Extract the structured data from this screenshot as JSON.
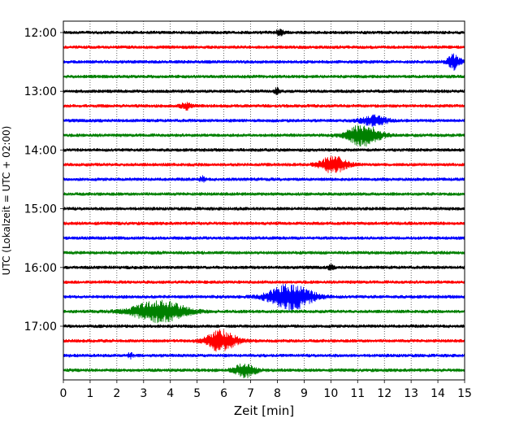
{
  "chart_data": {
    "type": "line",
    "title": "",
    "xlabel": "Zeit  [min]",
    "ylabel": "UTC (Lokalzeit = UTC + 02:00)",
    "xlim": [
      0,
      15
    ],
    "x_ticks": [
      "0",
      "1",
      "2",
      "3",
      "4",
      "5",
      "6",
      "7",
      "8",
      "9",
      "10",
      "11",
      "12",
      "13",
      "14",
      "15"
    ],
    "y_ticks": [
      "12:00",
      "13:00",
      "14:00",
      "15:00",
      "16:00",
      "17:00"
    ],
    "y_tick_traces": [
      0,
      4,
      8,
      12,
      16,
      20
    ],
    "grid": "vertical dotted at each minute",
    "trace_interval_min": 15,
    "color_cycle": [
      "#000000",
      "#ff0000",
      "#0000ff",
      "#008000"
    ],
    "series": [
      {
        "start": "12:00",
        "color": "#000000",
        "events": [
          {
            "t": 8.1,
            "amp": 0.5,
            "dur": 0.3
          }
        ]
      },
      {
        "start": "12:15",
        "color": "#ff0000",
        "events": []
      },
      {
        "start": "12:30",
        "color": "#0000ff",
        "events": [
          {
            "t": 14.6,
            "amp": 1.3,
            "dur": 0.5
          }
        ]
      },
      {
        "start": "12:45",
        "color": "#008000",
        "events": []
      },
      {
        "start": "13:00",
        "color": "#000000",
        "events": [
          {
            "t": 8.0,
            "amp": 0.6,
            "dur": 0.2
          }
        ]
      },
      {
        "start": "13:15",
        "color": "#ff0000",
        "events": [
          {
            "t": 4.6,
            "amp": 0.6,
            "dur": 0.4
          }
        ]
      },
      {
        "start": "13:30",
        "color": "#0000ff",
        "events": [
          {
            "t": 11.6,
            "amp": 0.8,
            "dur": 1.0
          }
        ]
      },
      {
        "start": "13:45",
        "color": "#008000",
        "events": [
          {
            "t": 11.2,
            "amp": 1.8,
            "dur": 1.2
          }
        ]
      },
      {
        "start": "14:00",
        "color": "#000000",
        "events": []
      },
      {
        "start": "14:15",
        "color": "#ff0000",
        "events": [
          {
            "t": 10.1,
            "amp": 1.4,
            "dur": 1.0
          }
        ]
      },
      {
        "start": "14:30",
        "color": "#0000ff",
        "events": [
          {
            "t": 5.2,
            "amp": 0.5,
            "dur": 0.2
          }
        ]
      },
      {
        "start": "14:45",
        "color": "#008000",
        "events": []
      },
      {
        "start": "15:00",
        "color": "#000000",
        "events": []
      },
      {
        "start": "15:15",
        "color": "#ff0000",
        "events": []
      },
      {
        "start": "15:30",
        "color": "#0000ff",
        "events": []
      },
      {
        "start": "15:45",
        "color": "#008000",
        "events": []
      },
      {
        "start": "16:00",
        "color": "#000000",
        "events": [
          {
            "t": 10.0,
            "amp": 0.4,
            "dur": 0.2
          }
        ]
      },
      {
        "start": "16:15",
        "color": "#ff0000",
        "events": []
      },
      {
        "start": "16:30",
        "color": "#0000ff",
        "events": [
          {
            "t": 8.5,
            "amp": 2.2,
            "dur": 1.6
          }
        ]
      },
      {
        "start": "16:45",
        "color": "#008000",
        "events": [
          {
            "t": 3.6,
            "amp": 1.8,
            "dur": 2.0
          }
        ]
      },
      {
        "start": "17:00",
        "color": "#000000",
        "events": []
      },
      {
        "start": "17:15",
        "color": "#ff0000",
        "events": [
          {
            "t": 5.9,
            "amp": 1.8,
            "dur": 1.1
          }
        ]
      },
      {
        "start": "17:30",
        "color": "#0000ff",
        "events": [
          {
            "t": 2.5,
            "amp": 0.4,
            "dur": 0.2
          }
        ]
      },
      {
        "start": "17:45",
        "color": "#008000",
        "events": [
          {
            "t": 6.8,
            "amp": 1.2,
            "dur": 0.8
          }
        ]
      }
    ]
  }
}
